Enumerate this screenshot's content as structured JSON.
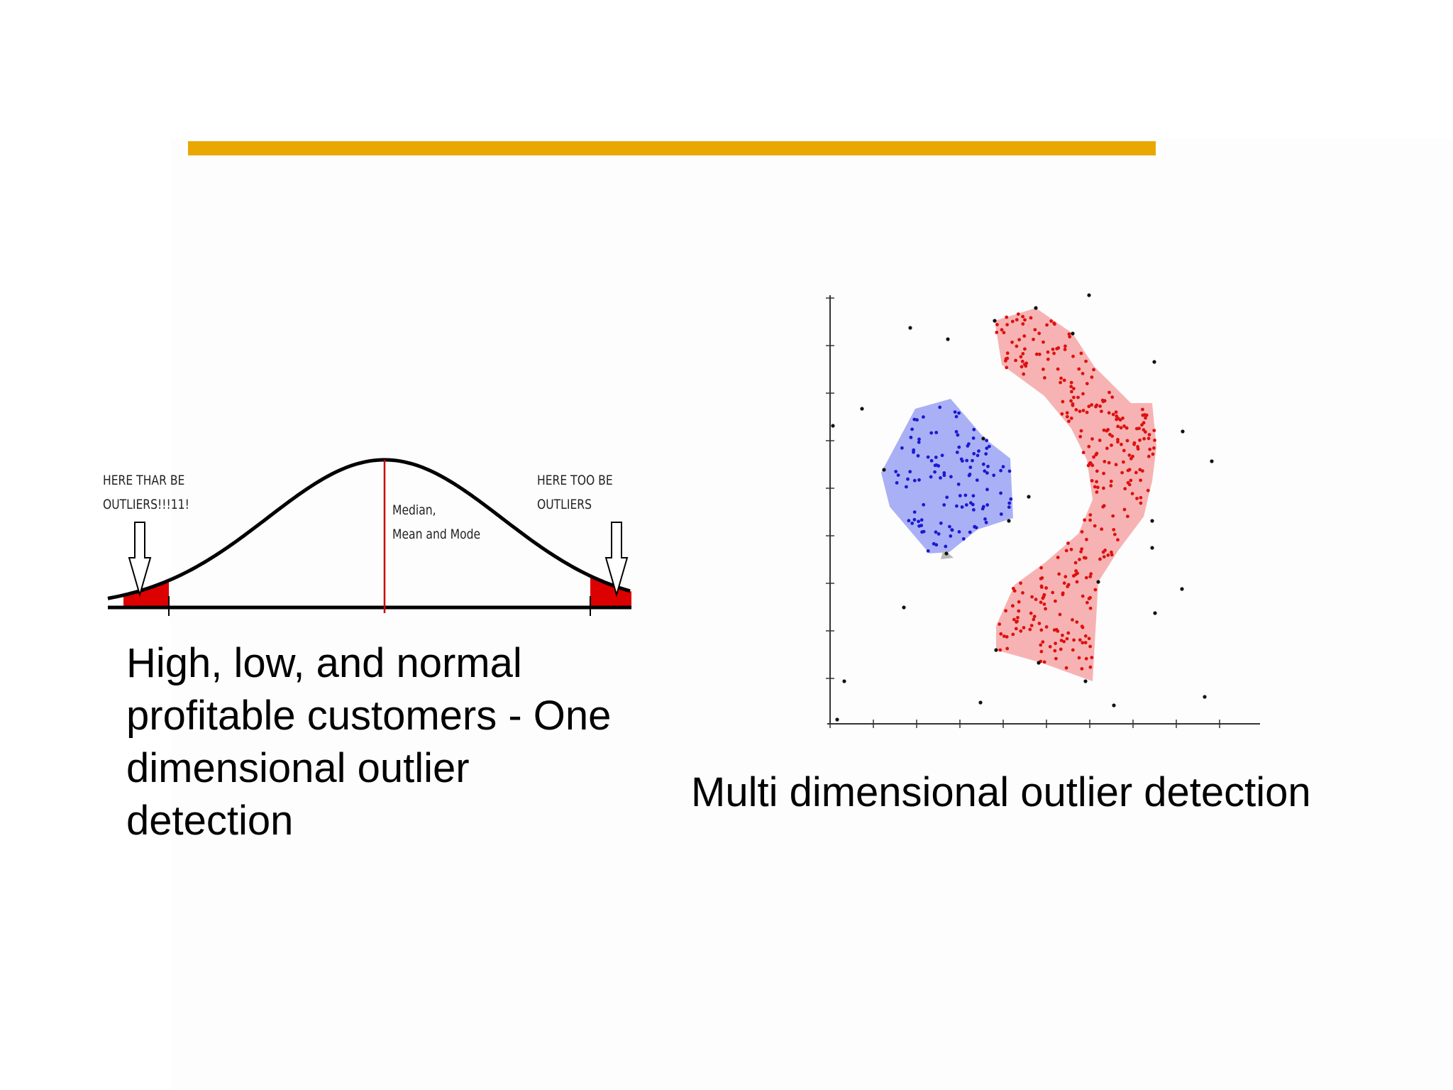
{
  "slide": {
    "accent_color": "#e8a800"
  },
  "left_figure": {
    "annotation_left": "HERE THAR BE\nOUTLIERS!!!11!",
    "annotation_right": "HERE TOO BE\nOUTLIERS",
    "annotation_center": "Median,\nMean and Mode",
    "curve_color": "#000000",
    "median_line_color": "#cc0000",
    "tail_color": "#dd0000"
  },
  "left_caption": "High, low, and normal profitable customers - One dimensional outlier detection",
  "right_caption": "Multi dimensional outlier detection",
  "right_figure": {
    "cluster_colors": {
      "blue_fill": "#aab0f5",
      "blue_points": "#1a1ad0",
      "red_fill": "#f7b3b3",
      "red_points": "#dd1111",
      "noise_points": "#111111"
    }
  }
}
